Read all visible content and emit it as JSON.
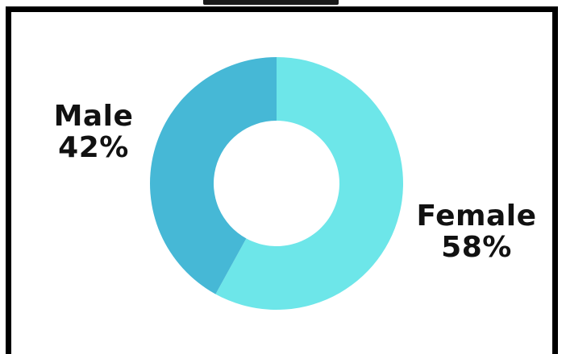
{
  "chart_data": {
    "type": "pie",
    "donut": true,
    "categories": [
      "Female",
      "Male"
    ],
    "values": [
      58,
      42
    ],
    "value_labels": [
      "58%",
      "42%"
    ],
    "colors": [
      "#6de6e9",
      "#46b8d6"
    ],
    "title": "",
    "legend": "none"
  },
  "labels": {
    "male": {
      "name": "Male",
      "pct": "42%"
    },
    "female": {
      "name": "Female",
      "pct": "58%"
    }
  },
  "colors": {
    "frame": "#000000",
    "background": "#ffffff",
    "text": "#111111"
  }
}
